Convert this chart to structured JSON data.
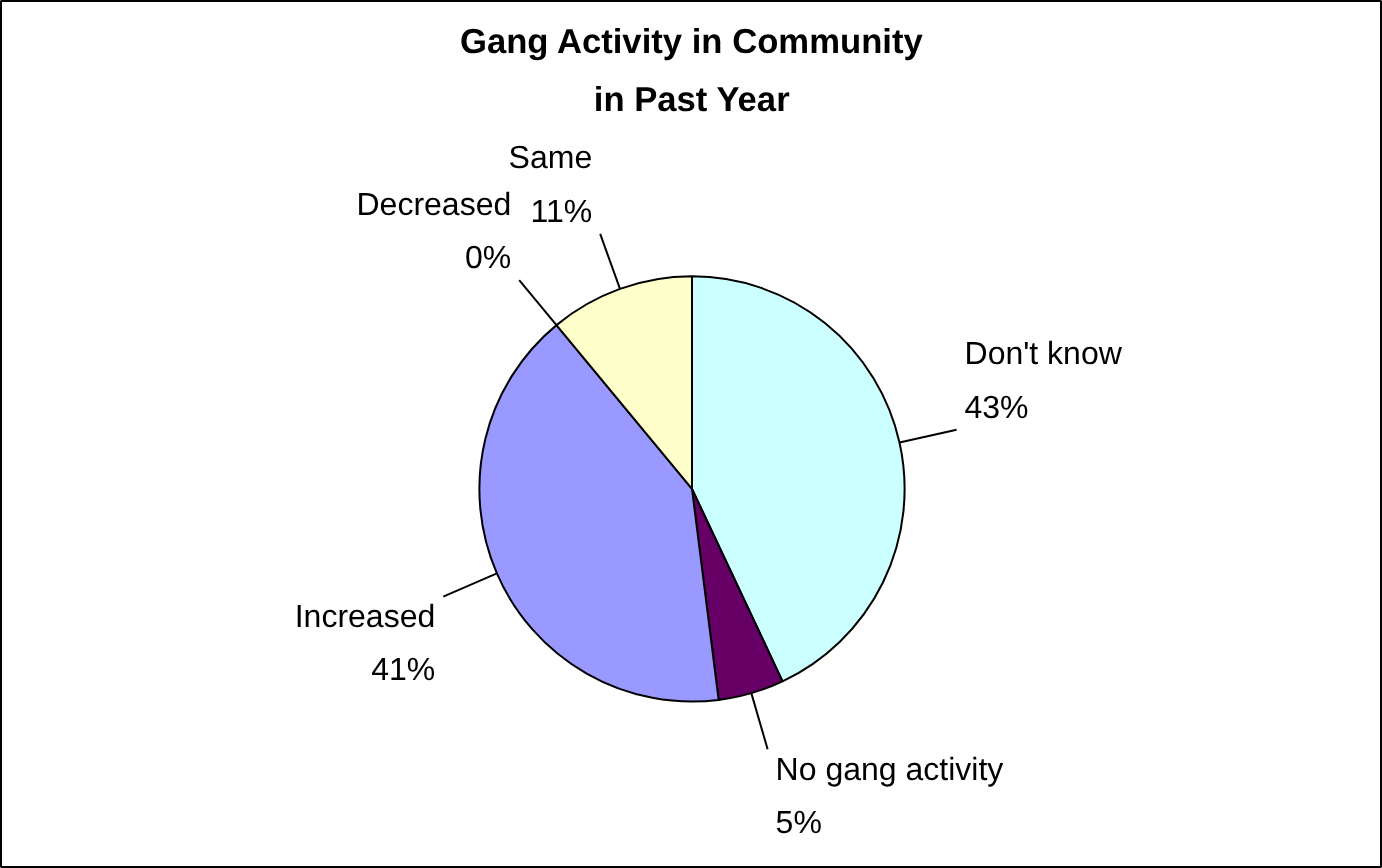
{
  "chart_data": {
    "type": "pie",
    "title": "Gang Activity in Community\nin Past Year",
    "categories": [
      "Don't know",
      "No gang activity",
      "Increased",
      "Decreased",
      "Same"
    ],
    "values": [
      43,
      5,
      41,
      0,
      11
    ],
    "value_labels": [
      "43%",
      "5%",
      "41%",
      "0%",
      "11%"
    ],
    "colors": [
      "#ccffff",
      "#660066",
      "#9999ff",
      "#993366",
      "#ffffcc"
    ],
    "legend": false
  }
}
